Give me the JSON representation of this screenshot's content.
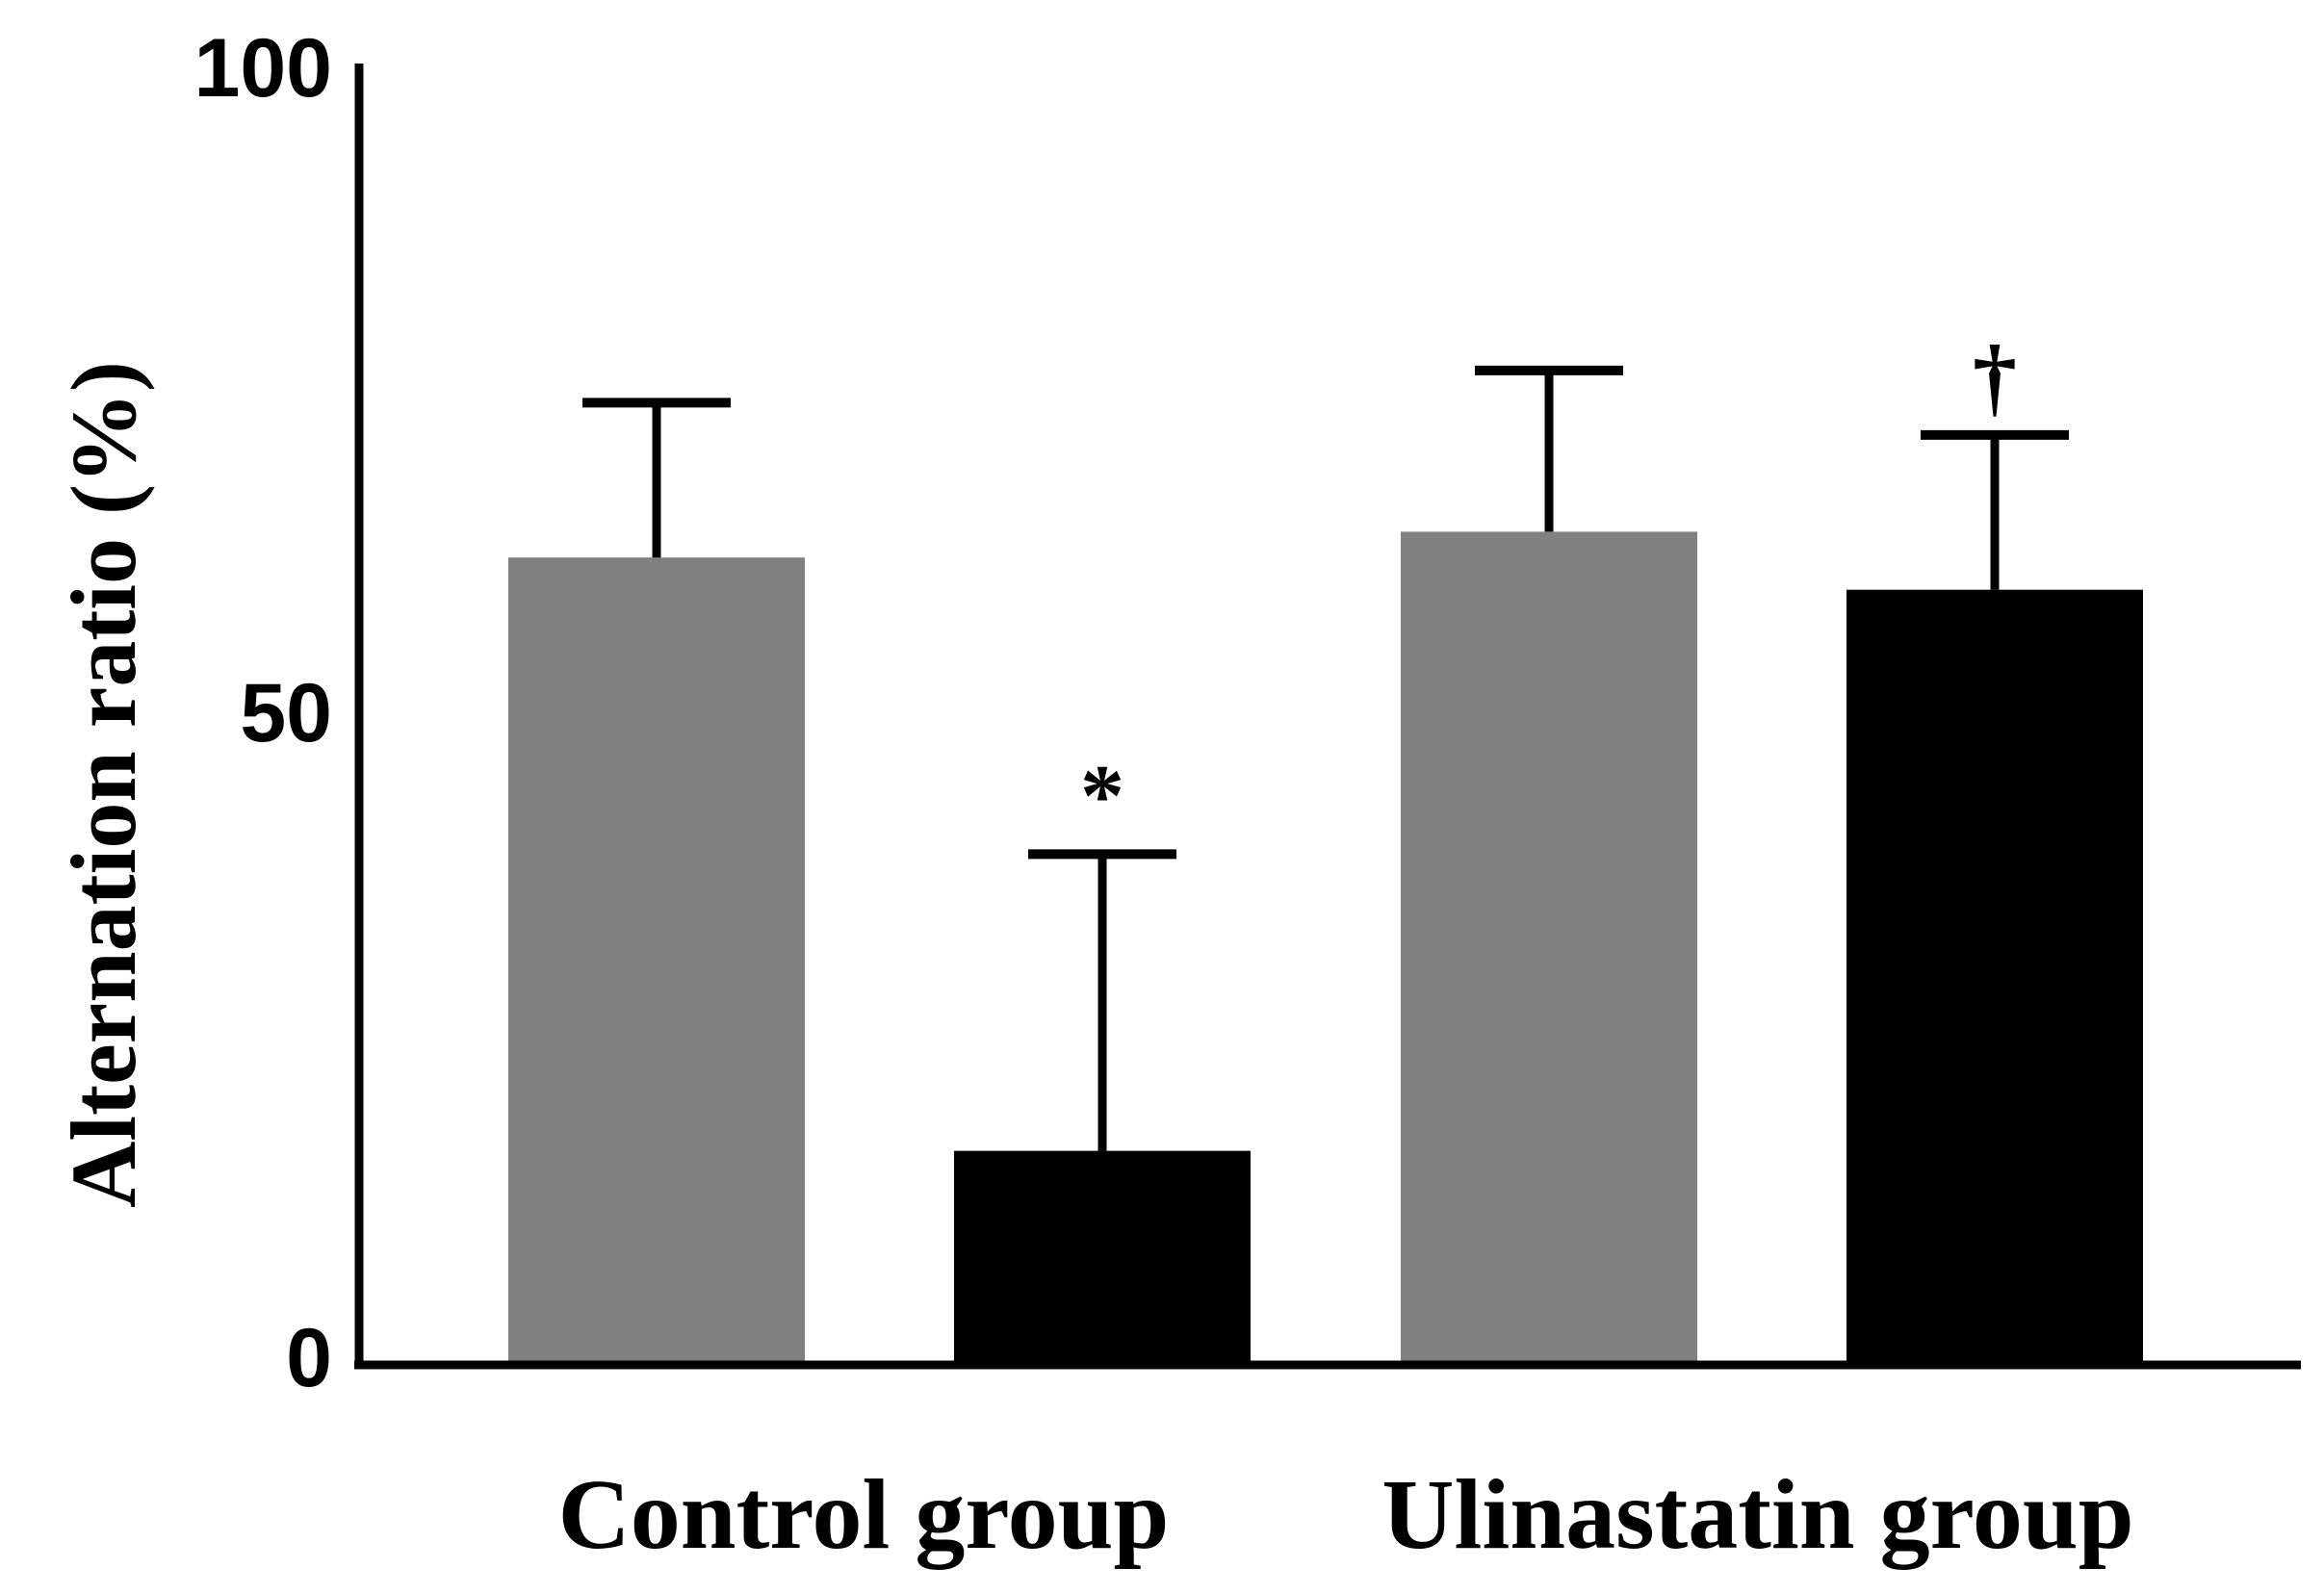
{
  "chart_data": {
    "type": "bar",
    "title": "",
    "xlabel": "",
    "ylabel": "Alternation ratio (%)",
    "ylim": [
      0,
      100
    ],
    "yticks": [
      "0",
      "50",
      "100"
    ],
    "grid": false,
    "legend": "none",
    "categories": [
      "Control group",
      "Ulinastatin group"
    ],
    "colors": {
      "gray": "#808080",
      "black": "#000000",
      "axis": "#000000"
    },
    "bars": [
      {
        "group": 0,
        "value": 62,
        "error": 12,
        "color": "gray",
        "significance": ""
      },
      {
        "group": 0,
        "value": 16,
        "error": 23,
        "color": "black",
        "significance": "*"
      },
      {
        "group": 1,
        "value": 64,
        "error": 12.5,
        "color": "gray",
        "significance": ""
      },
      {
        "group": 1,
        "value": 59.5,
        "error": 12,
        "color": "black",
        "significance": "†"
      }
    ]
  }
}
